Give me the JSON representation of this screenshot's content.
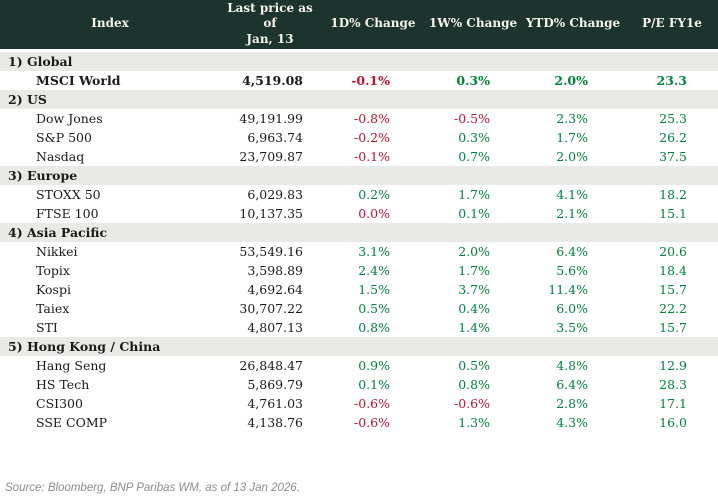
{
  "colors": {
    "header-bg": "#1c332e",
    "header-fg": "#f7f4e9",
    "section-bg": "#e9e9e6",
    "text": "#1a1a1a",
    "red": "#c8102e",
    "green": "#00843b",
    "footer-fg": "#8c8c8c"
  },
  "footer": {
    "source": "Source: Bloomberg, BNP Paribas WM, as of 13 Jan 2026."
  },
  "chart_data": {
    "type": "table",
    "columns": [
      "Index",
      "Last price as of\nJan, 13",
      "1D% Change",
      "1W% Change",
      "YTD% Change",
      "P/E FY1e"
    ],
    "sections": [
      {
        "label": "1) Global",
        "rows": [
          {
            "name": "MSCI World",
            "bold": true,
            "cells": [
              {
                "text": "4,519.08",
                "color": "black"
              },
              {
                "text": "-0.1%",
                "color": "red"
              },
              {
                "text": "0.3%",
                "color": "green"
              },
              {
                "text": "2.0%",
                "color": "green"
              },
              {
                "text": "23.3",
                "color": "green"
              }
            ]
          }
        ]
      },
      {
        "label": "2) US",
        "rows": [
          {
            "name": "Dow Jones",
            "bold": false,
            "cells": [
              {
                "text": "49,191.99",
                "color": "black"
              },
              {
                "text": "-0.8%",
                "color": "red"
              },
              {
                "text": "-0.5%",
                "color": "red"
              },
              {
                "text": "2.3%",
                "color": "green"
              },
              {
                "text": "25.3",
                "color": "green"
              }
            ]
          },
          {
            "name": "S&P 500",
            "bold": false,
            "cells": [
              {
                "text": "6,963.74",
                "color": "black"
              },
              {
                "text": "-0.2%",
                "color": "red"
              },
              {
                "text": "0.3%",
                "color": "green"
              },
              {
                "text": "1.7%",
                "color": "green"
              },
              {
                "text": "26.2",
                "color": "green"
              }
            ]
          },
          {
            "name": "Nasdaq",
            "bold": false,
            "cells": [
              {
                "text": "23,709.87",
                "color": "black"
              },
              {
                "text": "-0.1%",
                "color": "red"
              },
              {
                "text": "0.7%",
                "color": "green"
              },
              {
                "text": "2.0%",
                "color": "green"
              },
              {
                "text": "37.5",
                "color": "green"
              }
            ]
          }
        ]
      },
      {
        "label": "3) Europe",
        "rows": [
          {
            "name": "STOXX 50",
            "bold": false,
            "cells": [
              {
                "text": "6,029.83",
                "color": "black"
              },
              {
                "text": "0.2%",
                "color": "green"
              },
              {
                "text": "1.7%",
                "color": "green"
              },
              {
                "text": "4.1%",
                "color": "green"
              },
              {
                "text": "18.2",
                "color": "green"
              }
            ]
          },
          {
            "name": "FTSE 100",
            "bold": false,
            "cells": [
              {
                "text": "10,137.35",
                "color": "black"
              },
              {
                "text": "0.0%",
                "color": "red"
              },
              {
                "text": "0.1%",
                "color": "green"
              },
              {
                "text": "2.1%",
                "color": "green"
              },
              {
                "text": "15.1",
                "color": "green"
              }
            ]
          }
        ]
      },
      {
        "label": "4) Asia Pacific",
        "rows": [
          {
            "name": "Nikkei",
            "bold": false,
            "cells": [
              {
                "text": "53,549.16",
                "color": "black"
              },
              {
                "text": "3.1%",
                "color": "green"
              },
              {
                "text": "2.0%",
                "color": "green"
              },
              {
                "text": "6.4%",
                "color": "green"
              },
              {
                "text": "20.6",
                "color": "green"
              }
            ]
          },
          {
            "name": "Topix",
            "bold": false,
            "cells": [
              {
                "text": "3,598.89",
                "color": "black"
              },
              {
                "text": "2.4%",
                "color": "green"
              },
              {
                "text": "1.7%",
                "color": "green"
              },
              {
                "text": "5.6%",
                "color": "green"
              },
              {
                "text": "18.4",
                "color": "green"
              }
            ]
          },
          {
            "name": "Kospi",
            "bold": false,
            "cells": [
              {
                "text": "4,692.64",
                "color": "black"
              },
              {
                "text": "1.5%",
                "color": "green"
              },
              {
                "text": "3.7%",
                "color": "green"
              },
              {
                "text": "11.4%",
                "color": "green"
              },
              {
                "text": "15.7",
                "color": "green"
              }
            ]
          },
          {
            "name": "Taiex",
            "bold": false,
            "cells": [
              {
                "text": "30,707.22",
                "color": "black"
              },
              {
                "text": "0.5%",
                "color": "green"
              },
              {
                "text": "0.4%",
                "color": "green"
              },
              {
                "text": "6.0%",
                "color": "green"
              },
              {
                "text": "22.2",
                "color": "green"
              }
            ]
          },
          {
            "name": "STI",
            "bold": false,
            "cells": [
              {
                "text": "4,807.13",
                "color": "black"
              },
              {
                "text": "0.8%",
                "color": "green"
              },
              {
                "text": "1.4%",
                "color": "green"
              },
              {
                "text": "3.5%",
                "color": "green"
              },
              {
                "text": "15.7",
                "color": "green"
              }
            ]
          }
        ]
      },
      {
        "label": "5) Hong Kong / China",
        "rows": [
          {
            "name": "Hang Seng",
            "bold": false,
            "cells": [
              {
                "text": "26,848.47",
                "color": "black"
              },
              {
                "text": "0.9%",
                "color": "green"
              },
              {
                "text": "0.5%",
                "color": "green"
              },
              {
                "text": "4.8%",
                "color": "green"
              },
              {
                "text": "12.9",
                "color": "green"
              }
            ]
          },
          {
            "name": "HS Tech",
            "bold": false,
            "cells": [
              {
                "text": "5,869.79",
                "color": "black"
              },
              {
                "text": "0.1%",
                "color": "green"
              },
              {
                "text": "0.8%",
                "color": "green"
              },
              {
                "text": "6.4%",
                "color": "green"
              },
              {
                "text": "28.3",
                "color": "green"
              }
            ]
          },
          {
            "name": "CSI300",
            "bold": false,
            "cells": [
              {
                "text": "4,761.03",
                "color": "black"
              },
              {
                "text": "-0.6%",
                "color": "red"
              },
              {
                "text": "-0.6%",
                "color": "red"
              },
              {
                "text": "2.8%",
                "color": "green"
              },
              {
                "text": "17.1",
                "color": "green"
              }
            ]
          },
          {
            "name": "SSE COMP",
            "bold": false,
            "cells": [
              {
                "text": "4,138.76",
                "color": "black"
              },
              {
                "text": "-0.6%",
                "color": "red"
              },
              {
                "text": "1.3%",
                "color": "green"
              },
              {
                "text": "4.3%",
                "color": "green"
              },
              {
                "text": "16.0",
                "color": "green"
              }
            ]
          }
        ]
      }
    ]
  }
}
